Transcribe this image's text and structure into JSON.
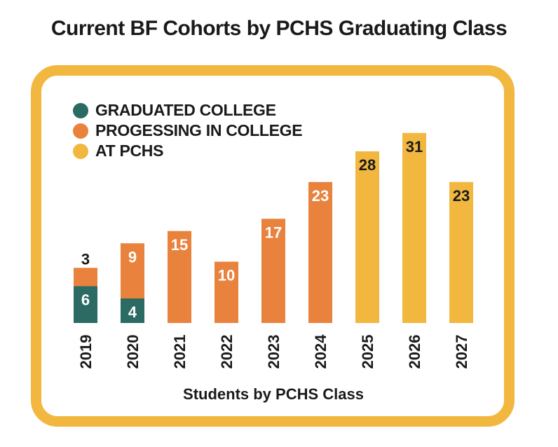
{
  "title": "Current BF Cohorts by PCHS Graduating Class",
  "colors": {
    "frame": "#f2b73f",
    "graduated": "#2b6b63",
    "progressing": "#e8823d",
    "at_pchs": "#f2b73f"
  },
  "chart_data": {
    "type": "bar",
    "stacked": true,
    "title": "Current BF Cohorts by PCHS Graduating Class",
    "xlabel": "Students by PCHS Class",
    "ylabel": "",
    "categories": [
      "2019",
      "2020",
      "2021",
      "2022",
      "2023",
      "2024",
      "2025",
      "2026",
      "2027"
    ],
    "series": [
      {
        "name": "GRADUATED COLLEGE",
        "color": "#2b6b63",
        "values": [
          6,
          4,
          0,
          0,
          0,
          0,
          0,
          0,
          0
        ]
      },
      {
        "name": "PROGESSING IN COLLEGE",
        "color": "#e8823d",
        "values": [
          3,
          9,
          15,
          10,
          17,
          23,
          0,
          0,
          0
        ]
      },
      {
        "name": "AT PCHS",
        "color": "#f2b73f",
        "values": [
          0,
          0,
          0,
          0,
          0,
          0,
          28,
          31,
          23
        ]
      }
    ],
    "ylim": [
      0,
      31
    ],
    "legend_position": "top-left",
    "grid": false
  }
}
